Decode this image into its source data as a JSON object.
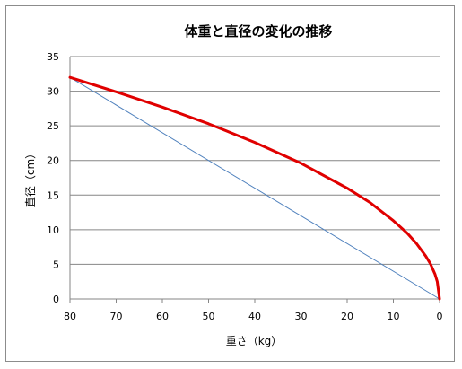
{
  "chart_data": {
    "type": "line",
    "title": "体重と直径の変化の推移",
    "xlabel": "重さ（kg）",
    "ylabel": "直径（cm）",
    "xlim": [
      80,
      0
    ],
    "ylim": [
      0,
      35
    ],
    "x_reversed": true,
    "x_ticks": [
      "80",
      "70",
      "60",
      "50",
      "40",
      "30",
      "20",
      "10",
      "0"
    ],
    "y_ticks": [
      "0",
      "5",
      "10",
      "15",
      "20",
      "25",
      "30",
      "35"
    ],
    "grid": "horizontal",
    "legend": "none",
    "series": [
      {
        "color": "#e00000",
        "x": [
          80,
          70,
          60,
          50,
          40,
          30,
          20,
          15,
          10,
          7,
          5,
          3,
          2,
          1,
          0.5,
          0
        ],
        "y": [
          32.0,
          29.9,
          27.7,
          25.3,
          22.6,
          19.6,
          16.0,
          13.9,
          11.3,
          9.5,
          8.0,
          6.2,
          5.1,
          3.6,
          2.5,
          0
        ]
      },
      {
        "color": "#4f81bd",
        "x": [
          80,
          0
        ],
        "y": [
          32.0,
          0
        ]
      }
    ]
  }
}
